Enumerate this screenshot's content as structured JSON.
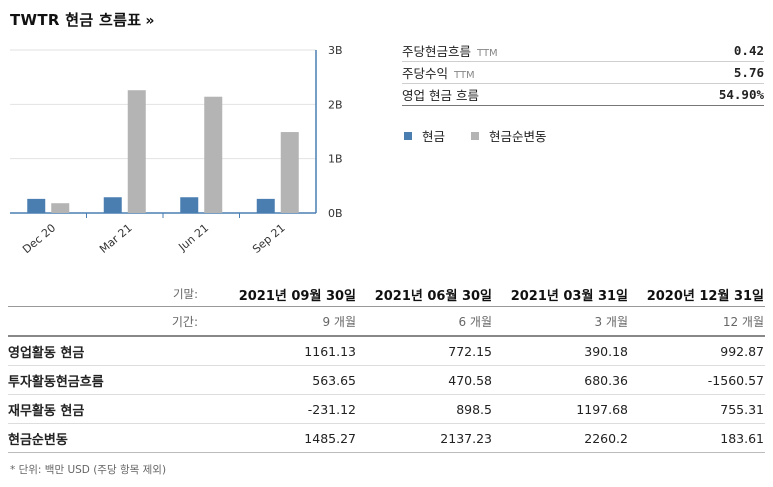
{
  "page": {
    "title": "TWTR 현금 흐름표",
    "title_arrow": "»"
  },
  "stats": [
    {
      "label": "주당현금흐름",
      "suffix": "TTM",
      "value": "0.42"
    },
    {
      "label": "주당수익",
      "suffix": "TTM",
      "value": "5.76"
    },
    {
      "label": "영업 현금 흐름",
      "suffix": "",
      "value": "54.90%"
    }
  ],
  "legend": [
    {
      "label": "현금",
      "color": "#4a7eb0"
    },
    {
      "label": "현금순변동",
      "color": "#b4b4b4"
    }
  ],
  "chart_data": {
    "type": "bar",
    "categories": [
      "Dec 20",
      "Mar 21",
      "Jun 21",
      "Sep 21"
    ],
    "series": [
      {
        "name": "현금",
        "values": [
          0.26,
          0.29,
          0.29,
          0.26
        ],
        "color": "#4a7eb0"
      },
      {
        "name": "현금순변동",
        "values": [
          0.18,
          2.26,
          2.14,
          1.49
        ],
        "color": "#b4b4b4"
      }
    ],
    "y_ticks": [
      "0B",
      "1B",
      "2B",
      "3B"
    ],
    "ylim": [
      0,
      3
    ],
    "grid": true,
    "y_axis_side": "right"
  },
  "cashflow": {
    "date_label": "기말:",
    "period_label": "기간:",
    "dates": [
      "2021년 09월 30일",
      "2021년 06월 30일",
      "2021년 03월 31일",
      "2020년 12월 31일"
    ],
    "periods": [
      "9 개월",
      "6 개월",
      "3 개월",
      "12 개월"
    ],
    "rows": [
      {
        "label": "영업활동 현금",
        "values": [
          "1161.13",
          "772.15",
          "390.18",
          "992.87"
        ]
      },
      {
        "label": "투자활동현금흐름",
        "values": [
          "563.65",
          "470.58",
          "680.36",
          "-1560.57"
        ]
      },
      {
        "label": "재무활동 현금",
        "values": [
          "-231.12",
          "898.5",
          "1197.68",
          "755.31"
        ]
      },
      {
        "label": "현금순변동",
        "values": [
          "1485.27",
          "2137.23",
          "2260.2",
          "183.61"
        ]
      }
    ]
  },
  "footnote": "* 단위: 백만 USD (주당 항목 제외)"
}
